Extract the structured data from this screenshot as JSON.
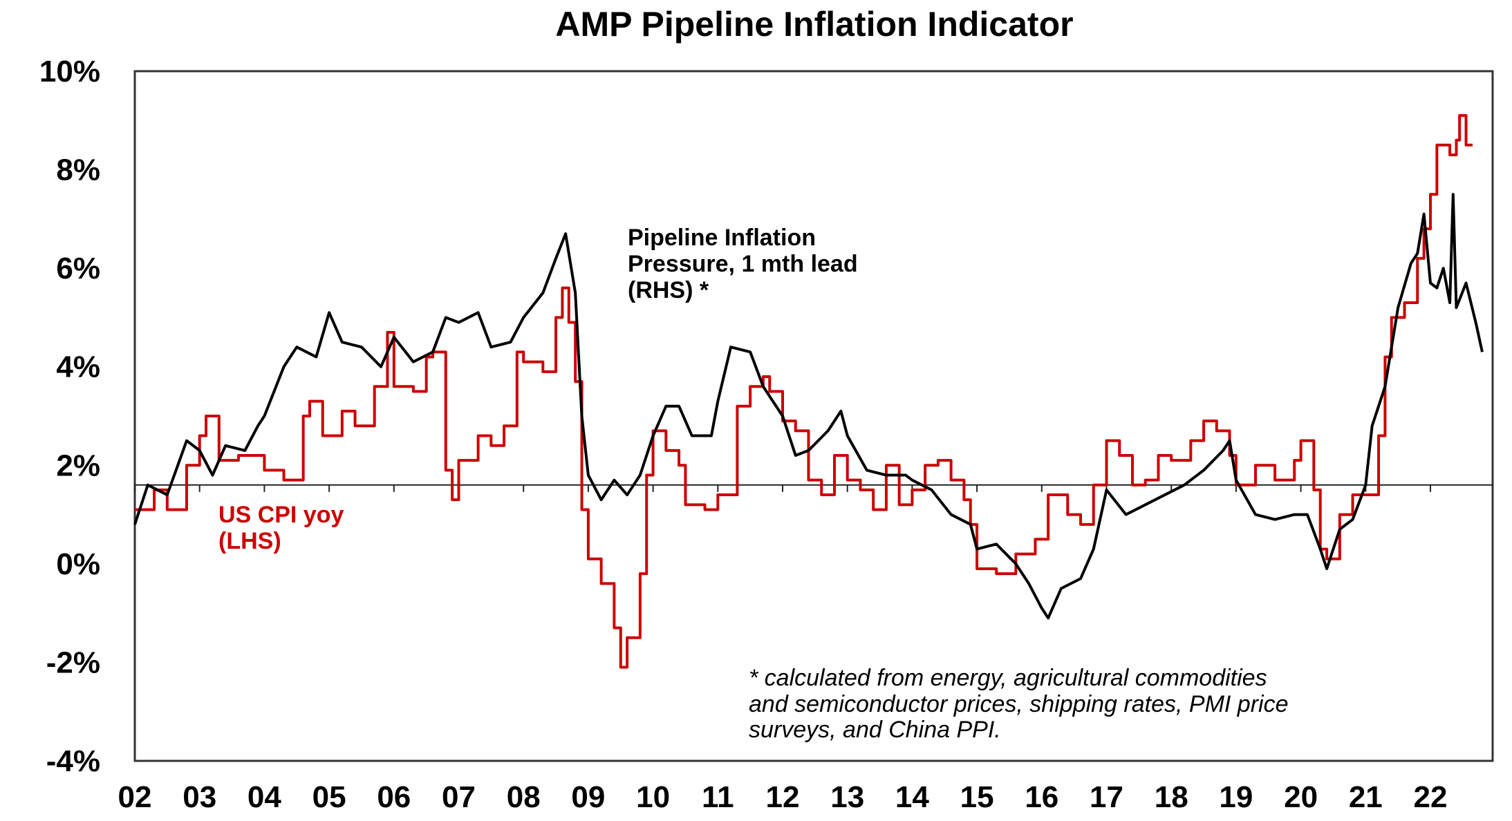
{
  "chart_data": {
    "type": "line",
    "title": "AMP Pipeline Inflation Indicator",
    "xlabel": "",
    "ylabel": "",
    "ylim": [
      -4,
      10
    ],
    "xlim": [
      2002,
      2022.95
    ],
    "y_ticks": [
      "10%",
      "8%",
      "6%",
      "4%",
      "2%",
      "0%",
      "-2%",
      "-4%"
    ],
    "y_tick_values": [
      10,
      8,
      6,
      4,
      2,
      0,
      -2,
      -4
    ],
    "x_ticks": [
      "02",
      "03",
      "04",
      "05",
      "06",
      "07",
      "08",
      "09",
      "10",
      "11",
      "12",
      "13",
      "14",
      "15",
      "16",
      "17",
      "18",
      "19",
      "20",
      "21",
      "22"
    ],
    "x_tick_values": [
      2002,
      2003,
      2004,
      2005,
      2006,
      2007,
      2008,
      2009,
      2010,
      2011,
      2012,
      2013,
      2014,
      2015,
      2016,
      2017,
      2018,
      2019,
      2020,
      2021,
      2022
    ],
    "reference_line": 1.6,
    "grid": false,
    "series": [
      {
        "name": "US CPI yoy (LHS)",
        "label_lines": [
          "US CPI yoy",
          "(LHS)"
        ],
        "color": "#cc0000",
        "step": true,
        "x": [
          2002.0,
          2002.3,
          2002.5,
          2002.8,
          2003.0,
          2003.1,
          2003.3,
          2003.6,
          2004.0,
          2004.3,
          2004.6,
          2004.7,
          2004.9,
          2005.2,
          2005.4,
          2005.7,
          2005.9,
          2006.0,
          2006.3,
          2006.5,
          2006.6,
          2006.8,
          2006.9,
          2007.0,
          2007.3,
          2007.5,
          2007.7,
          2007.9,
          2008.0,
          2008.3,
          2008.5,
          2008.6,
          2008.7,
          2008.8,
          2008.9,
          2009.0,
          2009.2,
          2009.4,
          2009.5,
          2009.6,
          2009.8,
          2009.9,
          2010.0,
          2010.2,
          2010.4,
          2010.5,
          2010.8,
          2011.0,
          2011.3,
          2011.5,
          2011.7,
          2011.8,
          2012.0,
          2012.2,
          2012.4,
          2012.6,
          2012.8,
          2013.0,
          2013.2,
          2013.4,
          2013.6,
          2013.8,
          2014.0,
          2014.2,
          2014.4,
          2014.6,
          2014.8,
          2014.9,
          2015.0,
          2015.3,
          2015.6,
          2015.9,
          2016.1,
          2016.4,
          2016.6,
          2016.8,
          2017.0,
          2017.2,
          2017.4,
          2017.6,
          2017.8,
          2018.0,
          2018.3,
          2018.5,
          2018.7,
          2018.9,
          2019.0,
          2019.3,
          2019.6,
          2019.9,
          2020.0,
          2020.2,
          2020.3,
          2020.4,
          2020.6,
          2020.8,
          2021.0,
          2021.2,
          2021.3,
          2021.4,
          2021.6,
          2021.8,
          2021.9,
          2022.0,
          2022.1,
          2022.3,
          2022.4,
          2022.45,
          2022.55,
          2022.65
        ],
        "values": [
          1.1,
          1.5,
          1.1,
          2.0,
          2.6,
          3.0,
          2.1,
          2.2,
          1.9,
          1.7,
          3.0,
          3.3,
          2.6,
          3.1,
          2.8,
          3.6,
          4.7,
          3.6,
          3.5,
          4.2,
          4.3,
          1.9,
          1.3,
          2.1,
          2.6,
          2.4,
          2.8,
          4.3,
          4.1,
          3.9,
          5.0,
          5.6,
          4.9,
          3.7,
          1.1,
          0.1,
          -0.4,
          -1.3,
          -2.1,
          -1.5,
          -0.2,
          1.8,
          2.7,
          2.3,
          2.0,
          1.2,
          1.1,
          1.4,
          3.2,
          3.6,
          3.8,
          3.5,
          2.9,
          2.7,
          1.7,
          1.4,
          2.2,
          1.7,
          1.5,
          1.1,
          2.0,
          1.2,
          1.5,
          2.0,
          2.1,
          1.7,
          1.3,
          0.8,
          -0.1,
          -0.2,
          0.2,
          0.5,
          1.4,
          1.0,
          0.8,
          1.6,
          2.5,
          2.2,
          1.6,
          1.7,
          2.2,
          2.1,
          2.5,
          2.9,
          2.7,
          2.2,
          1.6,
          2.0,
          1.7,
          2.1,
          2.5,
          1.5,
          0.3,
          0.1,
          1.0,
          1.4,
          1.4,
          2.6,
          4.2,
          5.0,
          5.3,
          6.2,
          6.8,
          7.5,
          8.5,
          8.3,
          8.6,
          9.1,
          8.5,
          8.5
        ]
      },
      {
        "name": "Pipeline Inflation Pressure, 1 mth lead (RHS) *",
        "label_lines": [
          "Pipeline Inflation",
          "Pressure, 1 mth lead",
          "(RHS) *"
        ],
        "color": "#000000",
        "step": false,
        "x": [
          2002.0,
          2002.2,
          2002.5,
          2002.8,
          2003.0,
          2003.2,
          2003.4,
          2003.7,
          2003.9,
          2004.0,
          2004.3,
          2004.5,
          2004.8,
          2005.0,
          2005.2,
          2005.5,
          2005.8,
          2006.0,
          2006.3,
          2006.6,
          2006.8,
          2007.0,
          2007.3,
          2007.5,
          2007.8,
          2008.0,
          2008.3,
          2008.5,
          2008.65,
          2008.8,
          2008.9,
          2009.0,
          2009.2,
          2009.4,
          2009.6,
          2009.8,
          2010.0,
          2010.2,
          2010.4,
          2010.6,
          2010.9,
          2011.0,
          2011.2,
          2011.5,
          2011.7,
          2012.0,
          2012.2,
          2012.4,
          2012.7,
          2012.9,
          2013.0,
          2013.3,
          2013.6,
          2013.9,
          2014.0,
          2014.3,
          2014.6,
          2014.9,
          2015.0,
          2015.3,
          2015.6,
          2015.8,
          2016.0,
          2016.1,
          2016.3,
          2016.6,
          2016.8,
          2017.0,
          2017.3,
          2017.6,
          2017.9,
          2018.2,
          2018.5,
          2018.8,
          2018.9,
          2019.0,
          2019.3,
          2019.6,
          2019.9,
          2020.1,
          2020.3,
          2020.4,
          2020.6,
          2020.8,
          2021.0,
          2021.1,
          2021.3,
          2021.5,
          2021.7,
          2021.8,
          2021.9,
          2022.0,
          2022.1,
          2022.2,
          2022.3,
          2022.35,
          2022.4,
          2022.55,
          2022.7,
          2022.8
        ],
        "values": [
          0.8,
          1.6,
          1.4,
          2.5,
          2.3,
          1.8,
          2.4,
          2.3,
          2.8,
          3.0,
          4.0,
          4.4,
          4.2,
          5.1,
          4.5,
          4.4,
          4.0,
          4.6,
          4.1,
          4.3,
          5.0,
          4.9,
          5.1,
          4.4,
          4.5,
          5.0,
          5.5,
          6.2,
          6.7,
          5.5,
          3.0,
          1.8,
          1.3,
          1.7,
          1.4,
          1.8,
          2.6,
          3.2,
          3.2,
          2.6,
          2.6,
          3.3,
          4.4,
          4.3,
          3.6,
          3.0,
          2.2,
          2.3,
          2.7,
          3.1,
          2.6,
          1.9,
          1.8,
          1.8,
          1.7,
          1.5,
          1.0,
          0.8,
          0.3,
          0.4,
          0.0,
          -0.4,
          -0.9,
          -1.1,
          -0.5,
          -0.3,
          0.3,
          1.5,
          1.0,
          1.2,
          1.4,
          1.6,
          1.9,
          2.3,
          2.5,
          1.7,
          1.0,
          0.9,
          1.0,
          1.0,
          0.3,
          -0.1,
          0.7,
          0.9,
          1.6,
          2.8,
          3.6,
          5.2,
          6.1,
          6.3,
          7.1,
          5.7,
          5.6,
          6.0,
          5.3,
          7.5,
          5.2,
          5.7,
          4.9,
          4.3
        ]
      }
    ],
    "footnote_lines": [
      "* calculated from energy, agricultural commodities",
      "and semiconductor prices, shipping rates, PMI price",
      "surveys, and China PPI."
    ]
  }
}
